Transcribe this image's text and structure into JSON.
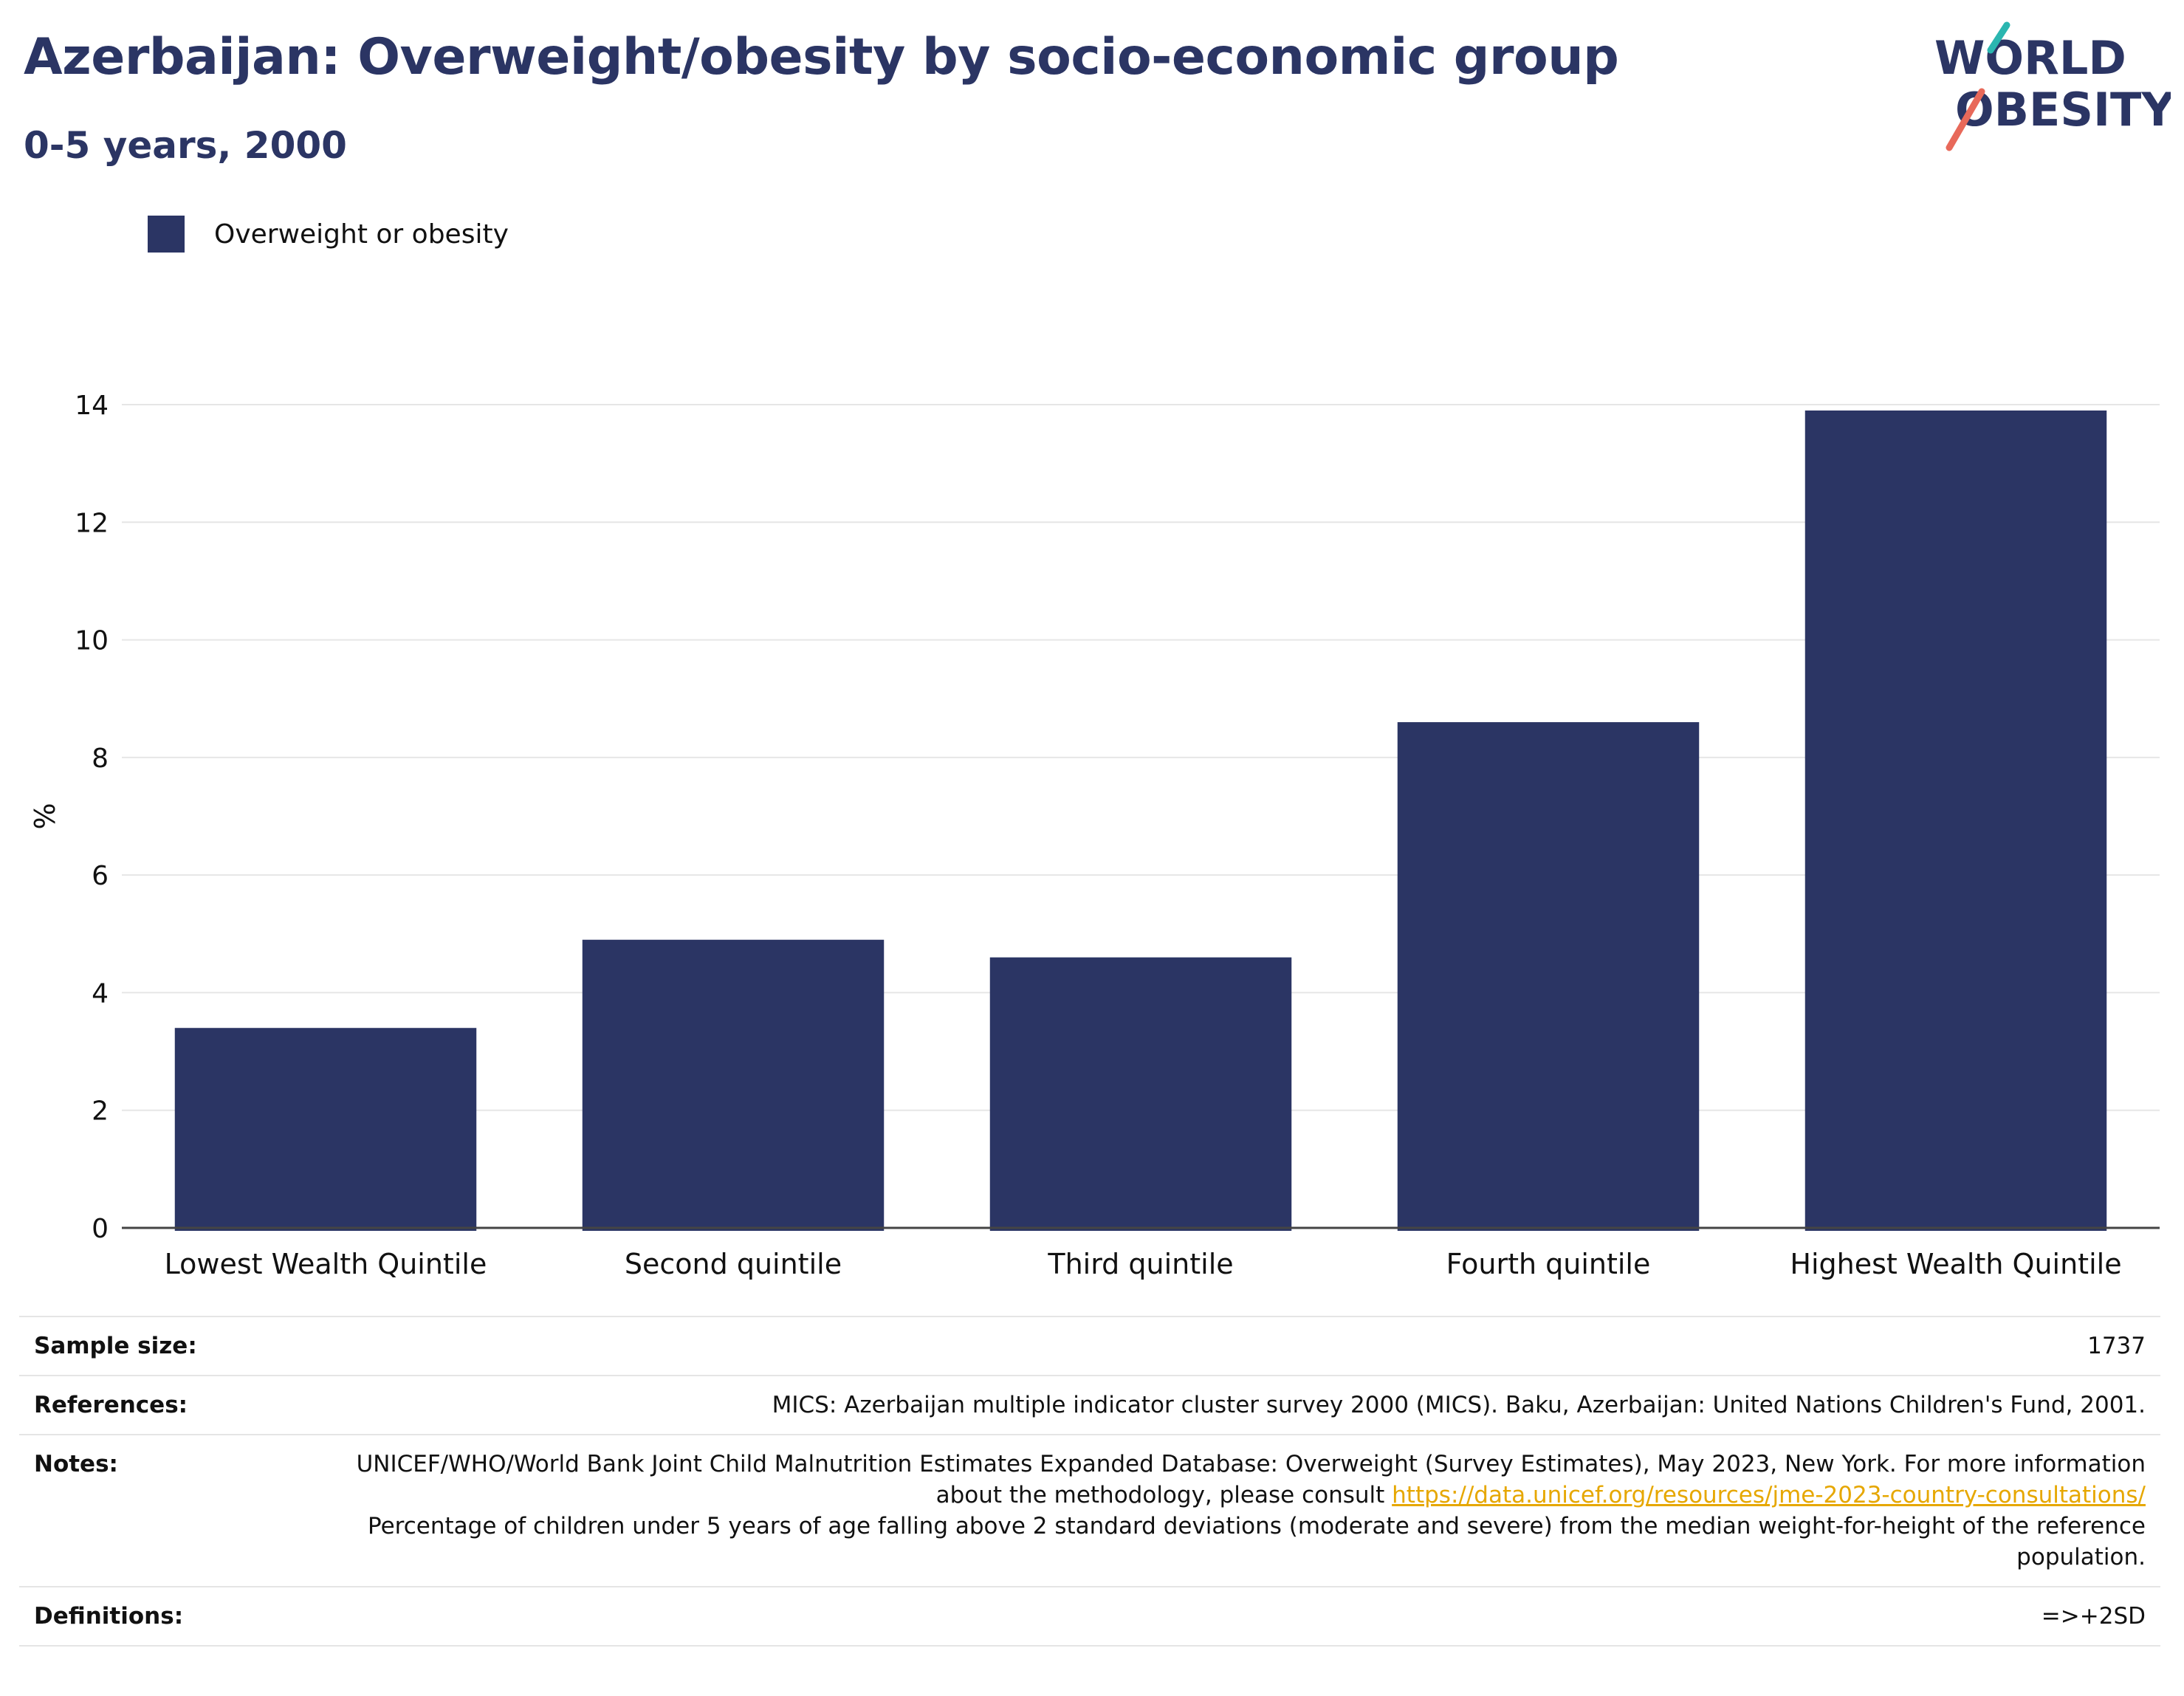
{
  "header": {
    "title": "Azerbaijan: Overweight/obesity by socio-economic group",
    "subtitle": "0-5 years, 2000"
  },
  "logo": {
    "line1": "WORLD",
    "line2": "OBESITY",
    "accent_colors": [
      "#2bb6b0",
      "#e8695a"
    ]
  },
  "colors": {
    "bar": "#2b3564",
    "title": "#2b3564",
    "link": "#e6a700"
  },
  "chart_data": {
    "type": "bar",
    "title": "",
    "xlabel": "",
    "ylabel": "%",
    "categories": [
      "Lowest Wealth Quintile",
      "Second quintile",
      "Third quintile",
      "Fourth quintile",
      "Highest Wealth Quintile"
    ],
    "series": [
      {
        "name": "Overweight or obesity",
        "values": [
          3.4,
          4.9,
          4.6,
          8.6,
          13.9
        ]
      }
    ],
    "ylim": [
      0,
      14
    ],
    "yticks": [
      0,
      2,
      4,
      6,
      8,
      10,
      12,
      14
    ],
    "grid": true,
    "legend_position": "top-left"
  },
  "meta": {
    "sample_size": {
      "label": "Sample size:",
      "value": "1737"
    },
    "references": {
      "label": "References:",
      "value": "MICS: Azerbaijan multiple indicator cluster survey 2000 (MICS). Baku, Azerbaijan: United Nations Children's Fund, 2001."
    },
    "notes": {
      "label": "Notes:",
      "text1": "UNICEF/WHO/World Bank Joint Child Malnutrition Estimates Expanded Database: Overweight (Survey Estimates), May 2023, New York. For more information about the methodology, please consult ",
      "link": "https://data.unicef.org/resources/jme-2023-country-consultations/",
      "text2": "Percentage of children under 5 years of age falling above 2 standard deviations (moderate and severe) from the median weight-for-height of the reference population."
    },
    "definitions": {
      "label": "Definitions:",
      "value": "=>+2SD"
    }
  }
}
